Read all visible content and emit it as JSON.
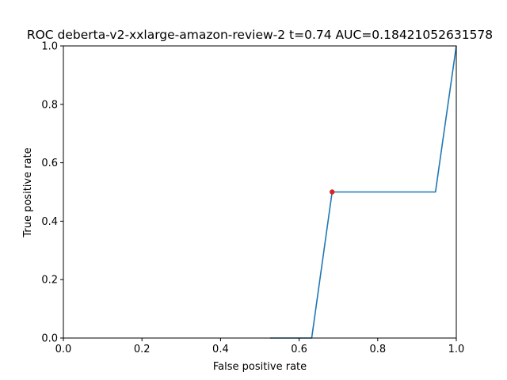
{
  "chart_data": {
    "type": "line",
    "title": "ROC deberta-v2-xxlarge-amazon-review-2 t=0.74 AUC=0.18421052631578",
    "xlabel": "False positive rate",
    "ylabel": "True positive rate",
    "xlim": [
      0,
      1
    ],
    "ylim": [
      0,
      1
    ],
    "x_ticks": [
      "0.0",
      "0.2",
      "0.4",
      "0.6",
      "0.8",
      "1.0"
    ],
    "y_ticks": [
      "0.0",
      "0.2",
      "0.4",
      "0.6",
      "0.8",
      "1.0"
    ],
    "grid": false,
    "series": [
      {
        "color": "#1f77b4",
        "x": [
          0.526,
          0.632,
          0.684,
          0.947,
          1.0
        ],
        "y": [
          0.0,
          0.0,
          0.5,
          0.5,
          1.0
        ]
      }
    ],
    "marker_point": {
      "x": 0.684,
      "y": 0.5,
      "color": "#d62728"
    }
  }
}
